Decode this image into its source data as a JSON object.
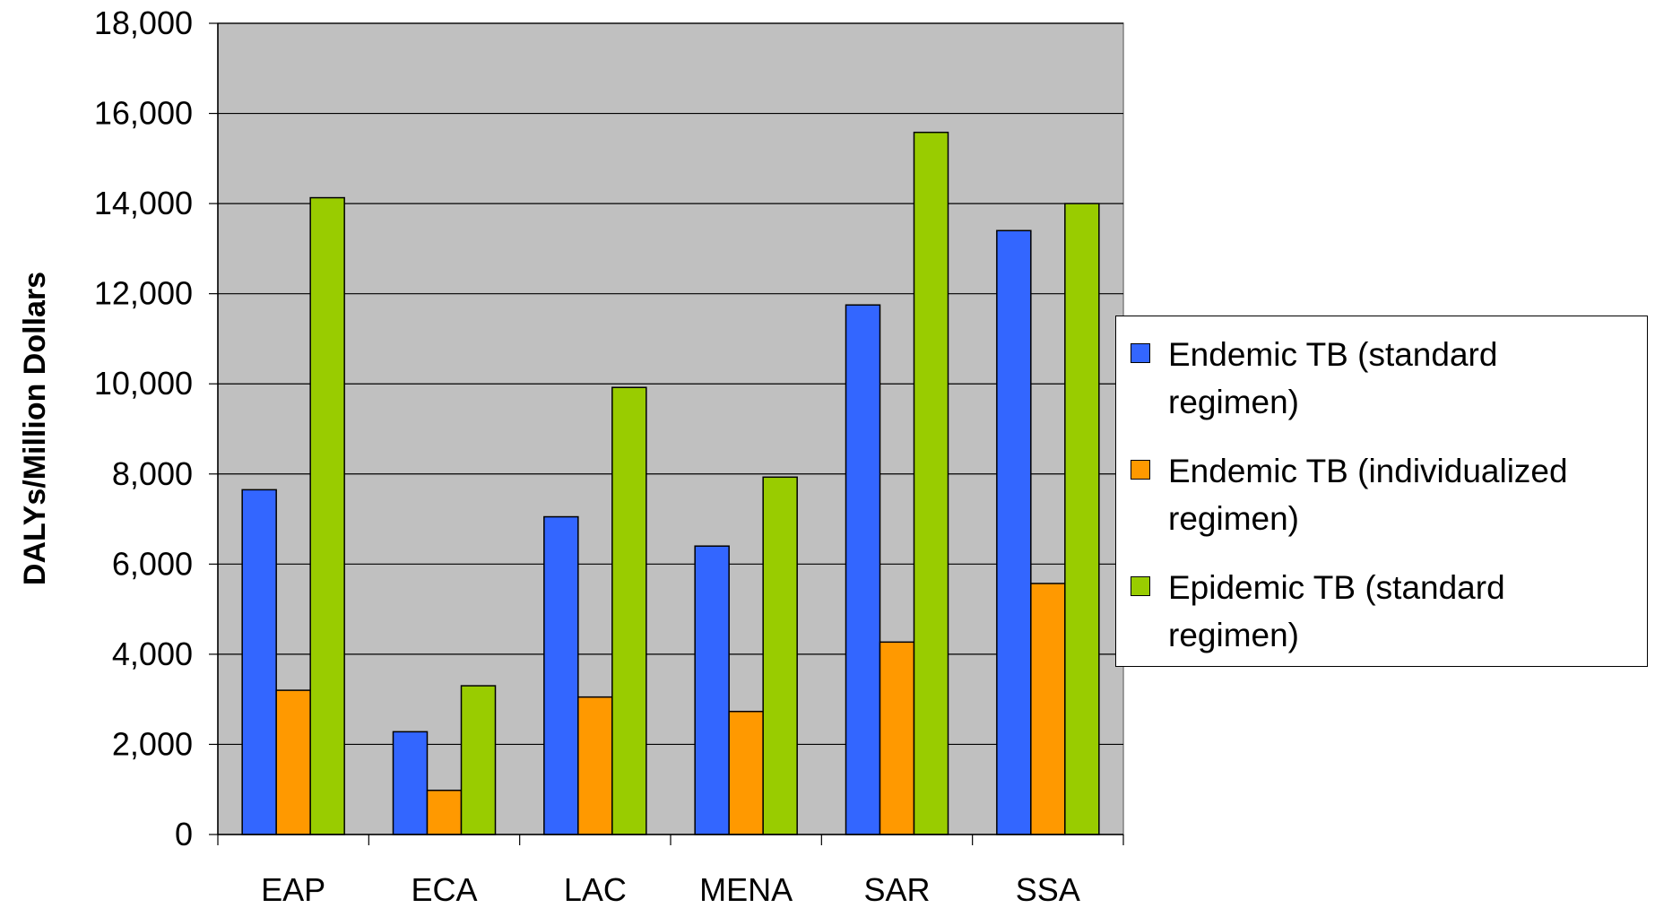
{
  "chart_data": {
    "type": "bar",
    "categories": [
      "EAP",
      "ECA",
      "LAC",
      "MENA",
      "SAR",
      "SSA"
    ],
    "series": [
      {
        "name": "Endemic TB (standard regimen)",
        "color": "#3366ff",
        "values": [
          7650,
          2280,
          7050,
          6400,
          11750,
          13400
        ]
      },
      {
        "name": "Endemic TB (individualized regimen)",
        "color": "#ff9900",
        "values": [
          3200,
          980,
          3050,
          2730,
          4270,
          5570
        ]
      },
      {
        "name": "Epidemic TB (standard regimen)",
        "color": "#99cc00",
        "values": [
          14130,
          3300,
          9920,
          7930,
          15580,
          14000
        ]
      }
    ],
    "ylabel": "DALYs/Million Dollars",
    "xlabel": "",
    "ylim": [
      0,
      18000
    ],
    "yticks": [
      "0",
      "2,000",
      "4,000",
      "6,000",
      "8,000",
      "10,000",
      "12,000",
      "14,000",
      "16,000",
      "18,000"
    ],
    "ytick_values": [
      0,
      2000,
      4000,
      6000,
      8000,
      10000,
      12000,
      14000,
      16000,
      18000
    ],
    "grid": true,
    "plot_background": "#c0c0c0",
    "legend_position": "right"
  }
}
